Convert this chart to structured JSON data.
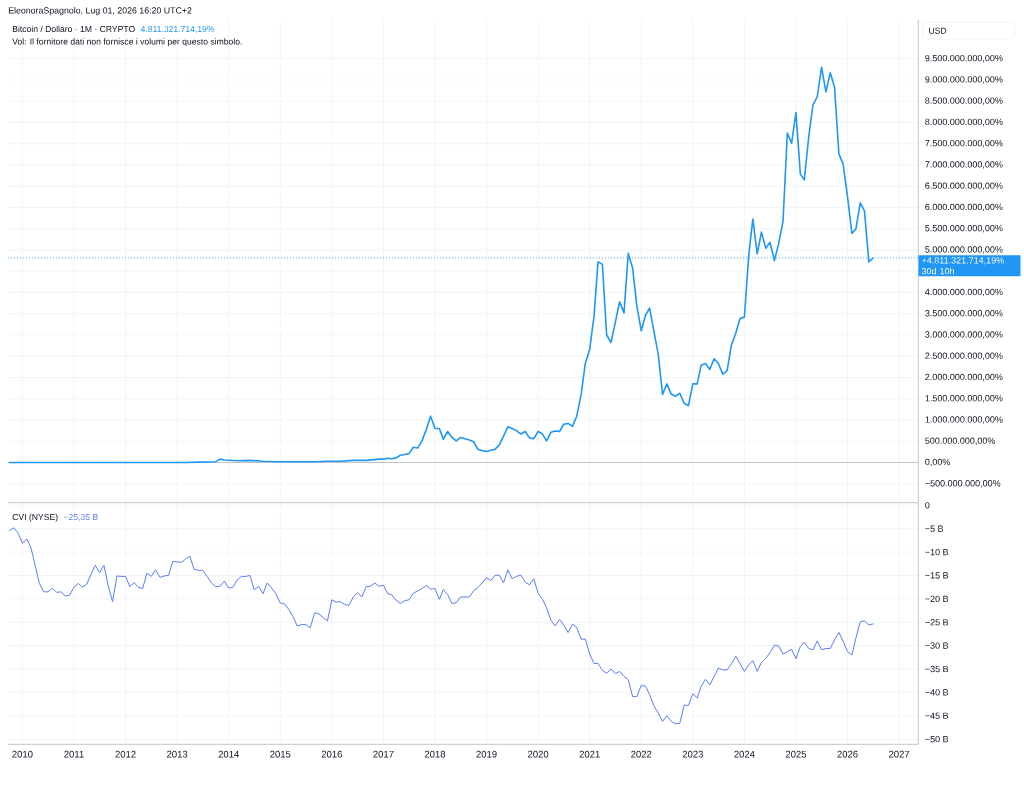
{
  "chart_data": [
    {
      "type": "line",
      "title": "Bitcoin / Dollaro · 1M · CRYPTO",
      "ylabel": "USD",
      "annotations": [
        "EleonoraSpagnolo, Lug 01, 2026 16:20 UTC+2",
        "4.811.321.714,19%",
        "Vol: Il fornitore dati non fornisce i volumi per questo simbolo.",
        "30d 10h"
      ],
      "x": [
        "2009-10",
        "2010-07",
        "2011-06",
        "2012-06",
        "2013-03",
        "2013-06",
        "2013-10",
        "2013-11",
        "2013-12",
        "2014-03",
        "2014-06",
        "2014-09",
        "2014-12",
        "2015-03",
        "2015-06",
        "2015-09",
        "2015-12",
        "2016-03",
        "2016-06",
        "2016-09",
        "2016-12",
        "2017-01",
        "2017-02",
        "2017-03",
        "2017-04",
        "2017-05",
        "2017-06",
        "2017-07",
        "2017-08",
        "2017-09",
        "2017-10",
        "2017-11",
        "2017-12",
        "2018-01",
        "2018-02",
        "2018-03",
        "2018-04",
        "2018-05",
        "2018-06",
        "2018-07",
        "2018-08",
        "2018-09",
        "2018-10",
        "2018-11",
        "2018-12",
        "2019-01",
        "2019-02",
        "2019-03",
        "2019-04",
        "2019-05",
        "2019-06",
        "2019-07",
        "2019-08",
        "2019-09",
        "2019-10",
        "2019-11",
        "2019-12",
        "2020-01",
        "2020-02",
        "2020-03",
        "2020-04",
        "2020-05",
        "2020-06",
        "2020-07",
        "2020-08",
        "2020-09",
        "2020-10",
        "2020-11",
        "2020-12",
        "2021-01",
        "2021-02",
        "2021-03",
        "2021-04",
        "2021-05",
        "2021-06",
        "2021-07",
        "2021-08",
        "2021-09",
        "2021-10",
        "2021-11",
        "2021-12",
        "2022-01",
        "2022-02",
        "2022-03",
        "2022-04",
        "2022-05",
        "2022-06",
        "2022-07",
        "2022-08",
        "2022-09",
        "2022-10",
        "2022-11",
        "2022-12",
        "2023-01",
        "2023-02",
        "2023-03",
        "2023-04",
        "2023-05",
        "2023-06",
        "2023-07",
        "2023-08",
        "2023-09",
        "2023-10",
        "2023-11",
        "2023-12",
        "2024-01",
        "2024-02",
        "2024-03",
        "2024-04",
        "2024-05",
        "2024-06",
        "2024-07",
        "2024-08",
        "2024-09",
        "2024-10",
        "2024-11",
        "2024-12",
        "2025-01",
        "2025-02",
        "2025-03",
        "2025-04",
        "2025-05",
        "2025-06",
        "2025-07",
        "2025-08",
        "2025-09",
        "2025-10",
        "2025-11",
        "2025-12",
        "2026-01",
        "2026-02",
        "2026-03",
        "2026-04",
        "2026-05",
        "2026-06",
        "2026-07"
      ],
      "series": [
        {
          "color": "#2196f3",
          "values": [
            0,
            0,
            0,
            0,
            0,
            10000000,
            20000000,
            80000000,
            60000000,
            40000000,
            50000000,
            30000000,
            20000000,
            20000000,
            20000000,
            20000000,
            30000000,
            30000000,
            50000000,
            50000000,
            80000000,
            80000000,
            100000000,
            90000000,
            110000000,
            170000000,
            190000000,
            210000000,
            360000000,
            340000000,
            510000000,
            780000000,
            1090000000,
            800000000,
            800000000,
            550000000,
            730000000,
            590000000,
            510000000,
            590000000,
            560000000,
            530000000,
            490000000,
            310000000,
            280000000,
            260000000,
            290000000,
            310000000,
            410000000,
            620000000,
            840000000,
            800000000,
            750000000,
            670000000,
            730000000,
            580000000,
            560000000,
            730000000,
            670000000,
            510000000,
            710000000,
            740000000,
            730000000,
            900000000,
            920000000,
            850000000,
            1090000000,
            1590000000,
            2330000000,
            2660000000,
            3450000000,
            4720000000,
            4660000000,
            3000000000,
            2820000000,
            3290000000,
            3780000000,
            3520000000,
            4920000000,
            4570000000,
            3680000000,
            3100000000,
            3470000000,
            3630000000,
            3080000000,
            2550000000,
            1600000000,
            1850000000,
            1610000000,
            1560000000,
            1630000000,
            1390000000,
            1340000000,
            1850000000,
            1850000000,
            2290000000,
            2330000000,
            2190000000,
            2440000000,
            2330000000,
            2080000000,
            2160000000,
            2760000000,
            3040000000,
            3390000000,
            3420000000,
            4880000000,
            5730000000,
            4910000000,
            5420000000,
            5040000000,
            5180000000,
            4750000000,
            5160000000,
            5670000000,
            7750000000,
            7510000000,
            8230000000,
            6790000000,
            6650000000,
            7650000000,
            8410000000,
            8610000000,
            9300000000,
            8720000000,
            9170000000,
            8830000000,
            7260000000,
            7020000000,
            6250000000,
            5390000000,
            5490000000,
            6110000000,
            5920000000,
            4720000000,
            4811321714.19
          ]
        }
      ],
      "xlim": [
        "2009-09-21",
        "2027-05-17"
      ],
      "xticks": [
        "2010",
        "2011",
        "2012",
        "2013",
        "2014",
        "2015",
        "2016",
        "2017",
        "2018",
        "2019",
        "2020",
        "2021",
        "2022",
        "2023",
        "2024",
        "2025",
        "2026",
        "2027"
      ],
      "ylim": [
        -945000000,
        10410000000
      ],
      "yticks": [
        {
          "value": -500000000,
          "label": "−500.000.000,00%"
        },
        {
          "value": 0,
          "label": "0,00%"
        },
        {
          "value": 500000000,
          "label": "500.000.000,00%"
        },
        {
          "value": 1000000000,
          "label": "1.000.000.000,00%"
        },
        {
          "value": 1500000000,
          "label": "1.500.000.000,00%"
        },
        {
          "value": 2000000000,
          "label": "2.000.000.000,00%"
        },
        {
          "value": 2500000000,
          "label": "2.500.000.000,00%"
        },
        {
          "value": 3000000000,
          "label": "3.000.000.000,00%"
        },
        {
          "value": 3500000000,
          "label": "3.500.000.000,00%"
        },
        {
          "value": 4000000000,
          "label": "4.000.000.000,00%"
        },
        {
          "value": 4500000000,
          "label": null
        },
        {
          "value": 5000000000,
          "label": "5.000.000.000,00%"
        },
        {
          "value": 5500000000,
          "label": "5.500.000.000,00%"
        },
        {
          "value": 6000000000,
          "label": "6.000.000.000,00%"
        },
        {
          "value": 6500000000,
          "label": "6.500.000.000,00%"
        },
        {
          "value": 7000000000,
          "label": "7.000.000.000,00%"
        },
        {
          "value": 7500000000,
          "label": "7.500.000.000,00%"
        },
        {
          "value": 8000000000,
          "label": "8.000.000.000,00%"
        },
        {
          "value": 8500000000,
          "label": "8.500.000.000,00%"
        },
        {
          "value": 9000000000,
          "label": "9.000.000.000,00%"
        },
        {
          "value": 9500000000,
          "label": "9.500.000.000,00%"
        }
      ],
      "ref_lines": [
        {
          "axis": "y",
          "value": 0,
          "color": "#b2b5be"
        },
        {
          "axis": "y",
          "value": 4811321714.19,
          "label": "+4.811.321.714,19%",
          "color": "#2196f3",
          "line_style": "dotted"
        }
      ],
      "grid": true,
      "tick_labels": "y"
    },
    {
      "type": "line",
      "title": "CVI (NYSE)",
      "annotations": [
        "−25,35 B"
      ],
      "x": [
        "2009-10",
        "2009-11",
        "2009-12",
        "2010-01",
        "2010-02",
        "2010-03",
        "2010-04",
        "2010-05",
        "2010-06",
        "2010-07",
        "2010-08",
        "2010-09",
        "2010-10",
        "2010-11",
        "2010-12",
        "2011-01",
        "2011-02",
        "2011-03",
        "2011-04",
        "2011-05",
        "2011-06",
        "2011-07",
        "2011-08",
        "2011-09",
        "2011-10",
        "2011-11",
        "2011-12",
        "2012-01",
        "2012-02",
        "2012-03",
        "2012-04",
        "2012-05",
        "2012-06",
        "2012-07",
        "2012-08",
        "2012-09",
        "2012-10",
        "2012-11",
        "2012-12",
        "2013-01",
        "2013-02",
        "2013-03",
        "2013-04",
        "2013-05",
        "2013-06",
        "2013-07",
        "2013-08",
        "2013-09",
        "2013-10",
        "2013-11",
        "2013-12",
        "2014-01",
        "2014-02",
        "2014-03",
        "2014-04",
        "2014-05",
        "2014-06",
        "2014-07",
        "2014-08",
        "2014-09",
        "2014-10",
        "2014-11",
        "2014-12",
        "2015-01",
        "2015-02",
        "2015-03",
        "2015-04",
        "2015-05",
        "2015-06",
        "2015-07",
        "2015-08",
        "2015-09",
        "2015-10",
        "2015-11",
        "2015-12",
        "2016-01",
        "2016-02",
        "2016-03",
        "2016-04",
        "2016-05",
        "2016-06",
        "2016-07",
        "2016-08",
        "2016-09",
        "2016-10",
        "2016-11",
        "2016-12",
        "2017-01",
        "2017-02",
        "2017-03",
        "2017-04",
        "2017-05",
        "2017-06",
        "2017-07",
        "2017-08",
        "2017-09",
        "2017-10",
        "2017-11",
        "2017-12",
        "2018-01",
        "2018-02",
        "2018-03",
        "2018-04",
        "2018-05",
        "2018-06",
        "2018-07",
        "2018-08",
        "2018-09",
        "2018-10",
        "2018-11",
        "2018-12",
        "2019-01",
        "2019-02",
        "2019-03",
        "2019-04",
        "2019-05",
        "2019-06",
        "2019-07",
        "2019-08",
        "2019-09",
        "2019-10",
        "2019-11",
        "2019-12",
        "2020-01",
        "2020-02",
        "2020-03",
        "2020-04",
        "2020-05",
        "2020-06",
        "2020-07",
        "2020-08",
        "2020-09",
        "2020-10",
        "2020-11",
        "2020-12",
        "2021-01",
        "2021-02",
        "2021-03",
        "2021-04",
        "2021-05",
        "2021-06",
        "2021-07",
        "2021-08",
        "2021-09",
        "2021-10",
        "2021-11",
        "2021-12",
        "2022-01",
        "2022-02",
        "2022-03",
        "2022-04",
        "2022-05",
        "2022-06",
        "2022-07",
        "2022-08",
        "2022-09",
        "2022-10",
        "2022-11",
        "2022-12",
        "2023-01",
        "2023-02",
        "2023-03",
        "2023-04",
        "2023-05",
        "2023-06",
        "2023-07",
        "2023-08",
        "2023-09",
        "2023-10",
        "2023-11",
        "2023-12",
        "2024-01",
        "2024-02",
        "2024-03",
        "2024-04",
        "2024-05",
        "2024-06",
        "2024-07",
        "2024-08",
        "2024-09",
        "2024-10",
        "2024-11",
        "2024-12",
        "2025-01",
        "2025-02",
        "2025-03",
        "2025-04",
        "2025-05",
        "2025-06",
        "2025-07",
        "2025-08",
        "2025-09",
        "2025-10",
        "2025-11",
        "2025-12",
        "2026-01",
        "2026-02",
        "2026-03",
        "2026-04",
        "2026-05",
        "2026-06",
        "2026-07"
      ],
      "series": [
        {
          "color": "#5b7cf6",
          "values": [
            -5.4,
            -4.8,
            -5.9,
            -8.1,
            -7.2,
            -8.9,
            -12.8,
            -16.7,
            -18.5,
            -18.5,
            -17.7,
            -18.6,
            -18.5,
            -19.4,
            -19.2,
            -17.5,
            -16.7,
            -17.5,
            -16.9,
            -14.8,
            -12.8,
            -14.4,
            -12.8,
            -17.3,
            -20.6,
            -15.1,
            -15.2,
            -15.2,
            -17.4,
            -16.5,
            -17.5,
            -17.8,
            -14.5,
            -15.2,
            -13.8,
            -15.4,
            -15.1,
            -15.0,
            -12.0,
            -12.1,
            -12.2,
            -11.5,
            -10.9,
            -13.7,
            -13.9,
            -13.9,
            -15.2,
            -16.6,
            -17.4,
            -17.3,
            -16.2,
            -17.7,
            -17.5,
            -16.0,
            -15.2,
            -15.2,
            -15.0,
            -18.1,
            -17.3,
            -18.9,
            -16.6,
            -17.7,
            -18.9,
            -20.9,
            -21.1,
            -22.2,
            -23.8,
            -25.8,
            -25.5,
            -25.5,
            -26.2,
            -23.0,
            -23.2,
            -24.0,
            -24.7,
            -20.2,
            -20.7,
            -20.6,
            -21.2,
            -21.4,
            -19.6,
            -18.7,
            -19.6,
            -17.4,
            -17.3,
            -16.6,
            -17.3,
            -17.1,
            -18.9,
            -19.1,
            -20.3,
            -21.0,
            -20.4,
            -20.2,
            -18.8,
            -18.3,
            -17.8,
            -17.1,
            -17.9,
            -17.8,
            -20.1,
            -18.0,
            -19.1,
            -21.0,
            -20.8,
            -19.6,
            -19.6,
            -19.6,
            -18.3,
            -17.6,
            -16.6,
            -15.5,
            -16.1,
            -15.0,
            -14.9,
            -16.6,
            -13.8,
            -15.7,
            -15.2,
            -14.9,
            -16.4,
            -17.0,
            -15.7,
            -18.8,
            -20.1,
            -21.9,
            -24.6,
            -25.8,
            -24.4,
            -25.6,
            -27.2,
            -25.4,
            -26.1,
            -28.6,
            -28.6,
            -31.8,
            -33.8,
            -33.8,
            -35.3,
            -35.9,
            -35.0,
            -36.0,
            -35.5,
            -36.6,
            -37.3,
            -40.9,
            -40.9,
            -38.5,
            -38.7,
            -40.5,
            -42.9,
            -44.4,
            -46.2,
            -45.0,
            -46.2,
            -46.7,
            -46.6,
            -42.7,
            -42.8,
            -40.3,
            -41.2,
            -38.7,
            -37.2,
            -38.4,
            -36.6,
            -34.8,
            -35.2,
            -35.2,
            -33.9,
            -32.3,
            -33.8,
            -35.5,
            -34.1,
            -33.2,
            -35.5,
            -33.6,
            -32.7,
            -31.5,
            -29.9,
            -30.1,
            -31.8,
            -31.3,
            -30.8,
            -32.8,
            -30.2,
            -29.3,
            -30.6,
            -30.9,
            -29.0,
            -30.9,
            -30.6,
            -30.6,
            -28.8,
            -27.2,
            -29.1,
            -31.3,
            -32.0,
            -28.4,
            -24.9,
            -24.7,
            -25.6,
            -25.35
          ]
        }
      ],
      "xlim": [
        "2009-09-21",
        "2027-05-17"
      ],
      "xticks": [
        "2010",
        "2011",
        "2012",
        "2013",
        "2014",
        "2015",
        "2016",
        "2017",
        "2018",
        "2019",
        "2020",
        "2021",
        "2022",
        "2023",
        "2024",
        "2025",
        "2026",
        "2027"
      ],
      "ylim": [
        -51.1,
        0.5
      ],
      "yticks": [
        0,
        {
          "value": -5,
          "label": "−5 B"
        },
        {
          "value": -10,
          "label": "−10 B"
        },
        {
          "value": -15,
          "label": "−15 B"
        },
        {
          "value": -20,
          "label": "−20 B"
        },
        {
          "value": -25,
          "label": "−25 B"
        },
        {
          "value": -30,
          "label": "−30 B"
        },
        {
          "value": -35,
          "label": "−35 B"
        },
        {
          "value": -40,
          "label": "−40 B"
        },
        {
          "value": -45,
          "label": "−45 B"
        },
        {
          "value": -50,
          "label": "−50 B"
        }
      ],
      "grid": true
    }
  ]
}
